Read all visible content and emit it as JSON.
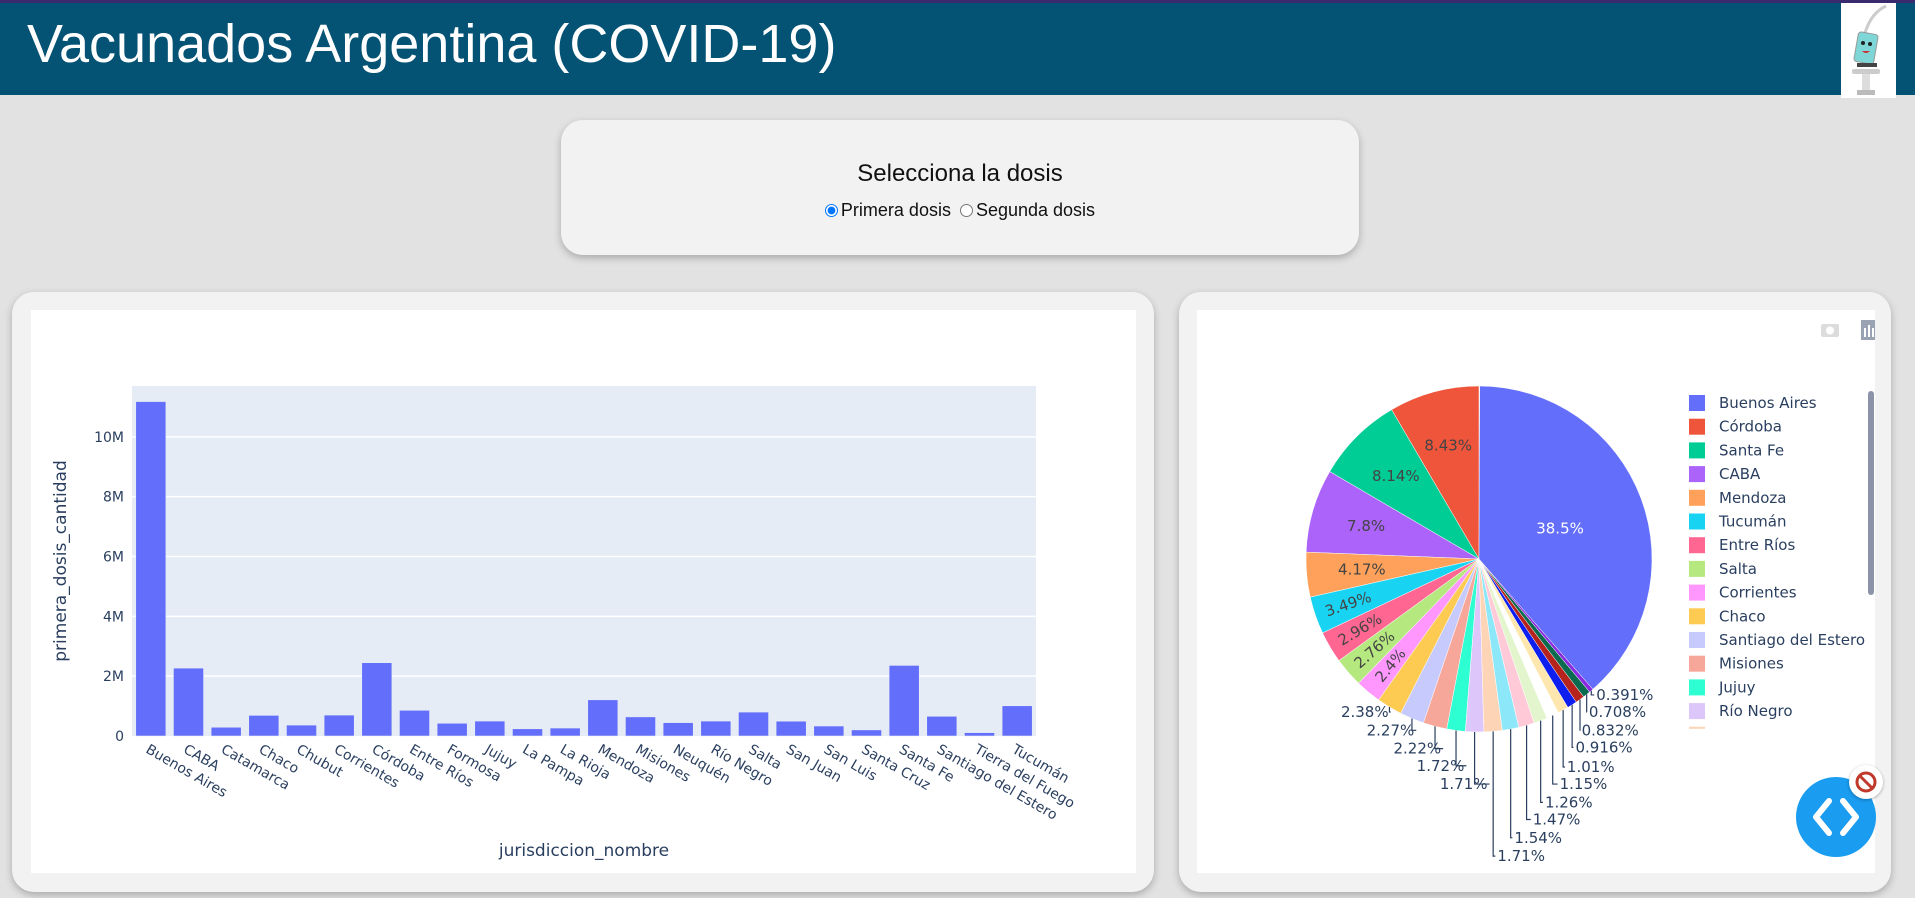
{
  "header": {
    "title": "Vacunados Argentina (COVID-19)",
    "logo": "syringe-cartoon"
  },
  "dose_selector": {
    "title": "Selecciona la dosis",
    "options": [
      {
        "label": "Primera dosis",
        "checked": true
      },
      {
        "label": "Segunda dosis",
        "checked": false
      }
    ]
  },
  "chart_data": [
    {
      "type": "bar",
      "xlabel": "jurisdiccion_nombre",
      "ylabel": "primera_dosis_cantidad",
      "ylim": [
        0,
        11700000
      ],
      "yticks": [
        {
          "v": 0,
          "label": "0"
        },
        {
          "v": 2000000,
          "label": "2M"
        },
        {
          "v": 4000000,
          "label": "4M"
        },
        {
          "v": 6000000,
          "label": "6M"
        },
        {
          "v": 8000000,
          "label": "8M"
        },
        {
          "v": 10000000,
          "label": "10M"
        }
      ],
      "color": "#636efa",
      "grid": true,
      "categories": [
        "Buenos Aires",
        "CABA",
        "Catamarca",
        "Chaco",
        "Chubut",
        "Corrientes",
        "Córdoba",
        "Entre Ríos",
        "Formosa",
        "Jujuy",
        "La Pampa",
        "La Rioja",
        "Mendoza",
        "Misiones",
        "Neuquén",
        "Río Negro",
        "Salta",
        "San Juan",
        "San Luis",
        "Santa Cruz",
        "Santa Fe",
        "Santiago del Estero",
        "Tierra del Fuego",
        "Tucumán"
      ],
      "values": [
        11180000,
        2270000,
        293000,
        690000,
        365000,
        700000,
        2450000,
        860000,
        426000,
        500000,
        241000,
        266000,
        1210000,
        640000,
        447000,
        500000,
        800000,
        496000,
        334000,
        205000,
        2360000,
        660000,
        113000,
        1010000
      ]
    },
    {
      "type": "pie",
      "direction": "counterclockwise",
      "slices": [
        {
          "label": "Córdoba",
          "pct": 8.43,
          "text": "8.43%",
          "color": "#EF553B"
        },
        {
          "label": "Santa Fe",
          "pct": 8.14,
          "text": "8.14%",
          "color": "#00cc96"
        },
        {
          "label": "CABA",
          "pct": 7.8,
          "text": "7.8%",
          "color": "#ab63fa"
        },
        {
          "label": "Mendoza",
          "pct": 4.17,
          "text": "4.17%",
          "color": "#FFA15A"
        },
        {
          "label": "Tucumán",
          "pct": 3.49,
          "text": "3.49%",
          "color": "#19d3f3"
        },
        {
          "label": "Entre Ríos",
          "pct": 2.96,
          "text": "2.96%",
          "color": "#FF6692"
        },
        {
          "label": "Salta",
          "pct": 2.76,
          "text": "2.76%",
          "color": "#B6E880"
        },
        {
          "label": "Corrientes",
          "pct": 2.4,
          "text": "2.4%",
          "color": "#FF97FF"
        },
        {
          "label": "Chaco",
          "pct": 2.38,
          "text": "2.38%",
          "color": "#FECB52"
        },
        {
          "label": "Santiago del Estero",
          "pct": 2.27,
          "text": "2.27%",
          "color": "#c6cafd"
        },
        {
          "label": "Misiones",
          "pct": 2.22,
          "text": "2.22%",
          "color": "#f7a799"
        },
        {
          "label": "Jujuy",
          "pct": 1.72,
          "text": "1.72%",
          "color": "#2dffd2"
        },
        {
          "label": "Río Negro",
          "pct": 1.71,
          "text": "1.71%",
          "color": "#dcc6fa"
        },
        {
          "label": "San Juan",
          "pct": 1.71,
          "text": "1.71%",
          "color": "#fed4b6"
        },
        {
          "label": "Neuquén",
          "pct": 1.54,
          "text": "1.54%",
          "color": "#8ce7f8"
        },
        {
          "label": "Formosa",
          "pct": 1.47,
          "text": "1.47%",
          "color": "#ffc9d8"
        },
        {
          "label": "Chubut",
          "pct": 1.26,
          "text": "1.26%",
          "color": "#e3f5cc"
        },
        {
          "label": "San Luis",
          "pct": 1.15,
          "text": "1.15%",
          "color": "#ffffff"
        },
        {
          "label": "Catamarca",
          "pct": 1.01,
          "text": "1.01%",
          "color": "#fee7ae"
        },
        {
          "label": "La Rioja",
          "pct": 0.916,
          "text": "0.916%",
          "color": "#0d1eee"
        },
        {
          "label": "La Pampa",
          "pct": 0.832,
          "text": "0.832%",
          "color": "#b5231c"
        },
        {
          "label": "Santa Cruz",
          "pct": 0.708,
          "text": "0.708%",
          "color": "#0b6b4e"
        },
        {
          "label": "Tierra del Fuego",
          "pct": 0.391,
          "text": "0.391%",
          "color": "#8a2be2"
        },
        {
          "label": "Buenos Aires",
          "pct": 38.5,
          "text": "38.5%",
          "color": "#636efa"
        }
      ],
      "legend": [
        "Buenos Aires",
        "Córdoba",
        "Santa Fe",
        "CABA",
        "Mendoza",
        "Tucumán",
        "Entre Ríos",
        "Salta",
        "Corrientes",
        "Chaco",
        "Santiago del Estero",
        "Misiones",
        "Jujuy",
        "Río Negro"
      ],
      "legend_placement": "right"
    }
  ],
  "modebar": {
    "icons": [
      "camera-icon",
      "plotly-logo-icon"
    ]
  },
  "fab": {
    "icon": "code-brackets-icon",
    "badge_icon": "no-entry-icon"
  }
}
